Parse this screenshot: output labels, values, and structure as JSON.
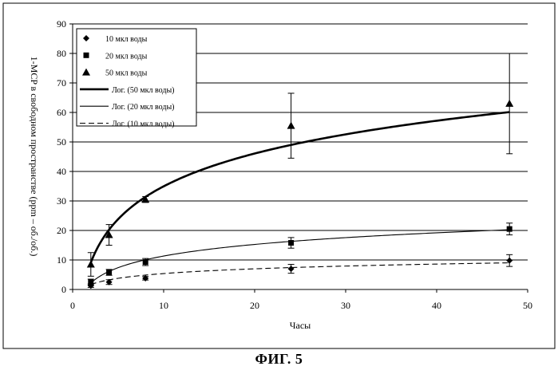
{
  "figure": {
    "caption": "ФИГ. 5"
  },
  "chart_data": {
    "type": "scatter",
    "xlabel": "Часы",
    "ylabel": "1-MCP в свободном пространстве (ppm – об./об.)",
    "xlim": [
      0,
      50
    ],
    "ylim": [
      0,
      90
    ],
    "xticks": [
      0,
      10,
      20,
      30,
      40,
      50
    ],
    "yticks": [
      0,
      10,
      20,
      30,
      40,
      50,
      60,
      70,
      80,
      90
    ],
    "grid": "horizontal",
    "legend_position": "top-left",
    "series": [
      {
        "name": "10 мкл воды",
        "marker": "diamond",
        "points": [
          {
            "x": 2,
            "y": 1.3,
            "err": 0.6
          },
          {
            "x": 4,
            "y": 2.5,
            "err": 0.8
          },
          {
            "x": 8,
            "y": 3.8,
            "err": 0.6
          },
          {
            "x": 24,
            "y": 7.0,
            "err": 1.5
          },
          {
            "x": 48,
            "y": 9.8,
            "err": 2.0
          }
        ]
      },
      {
        "name": "20 мкл воды",
        "marker": "square",
        "points": [
          {
            "x": 2,
            "y": 2.5,
            "err": 1.0
          },
          {
            "x": 4,
            "y": 5.8,
            "err": 1.0
          },
          {
            "x": 8,
            "y": 9.3,
            "err": 1.2
          },
          {
            "x": 24,
            "y": 15.8,
            "err": 1.8
          },
          {
            "x": 48,
            "y": 20.5,
            "err": 2.0
          }
        ]
      },
      {
        "name": "50 мкл воды",
        "marker": "triangle",
        "points": [
          {
            "x": 2,
            "y": 8.5,
            "err": 4.0
          },
          {
            "x": 4,
            "y": 18.5,
            "err": 3.5
          },
          {
            "x": 8,
            "y": 30.5,
            "err": 1.0
          },
          {
            "x": 24,
            "y": 55.5,
            "err": 11.0
          },
          {
            "x": 48,
            "y": 63.0,
            "err": 17.0
          }
        ]
      }
    ],
    "trendlines": [
      {
        "name": "Лог. (50 мкл воды)",
        "style": "bold",
        "a": 16.04,
        "b": -1.98
      },
      {
        "name": "Лог. (20 мкл воды)",
        "style": "thin",
        "a": 5.68,
        "b": -1.75
      },
      {
        "name": "Лог. (10 мкл воды)",
        "style": "dashed",
        "a": 2.32,
        "b": 0.05
      }
    ]
  }
}
